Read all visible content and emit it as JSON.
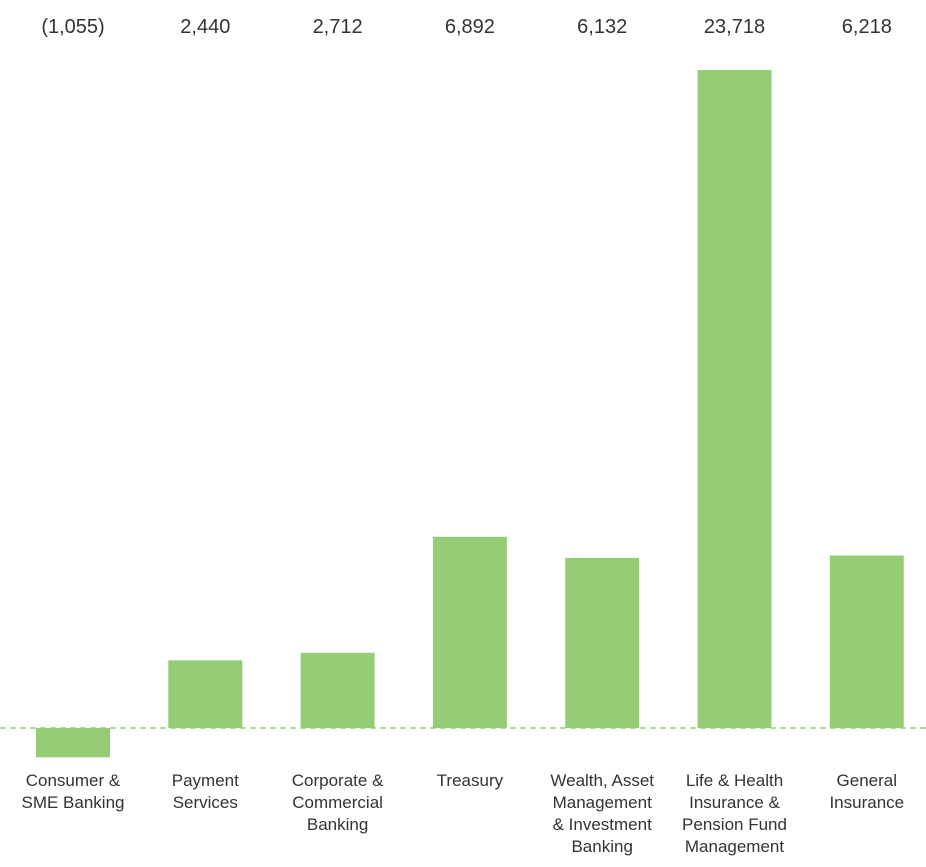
{
  "chart_data": {
    "type": "bar",
    "categories": [
      [
        "Consumer &",
        "SME Banking"
      ],
      [
        "Payment",
        "Services"
      ],
      [
        "Corporate &",
        "Commercial",
        "Banking"
      ],
      [
        "Treasury"
      ],
      [
        "Wealth, Asset",
        "Management",
        "& Investment",
        "Banking"
      ],
      [
        "Life & Health",
        "Insurance &",
        "Pension Fund",
        "Management"
      ],
      [
        "General",
        "Insurance"
      ]
    ],
    "values": [
      -1055,
      2440,
      2712,
      6892,
      6132,
      23718,
      6218
    ],
    "value_labels": [
      "(1,055)",
      "2,440",
      "2,712",
      "6,892",
      "6,132",
      "23,718",
      "6,218"
    ],
    "title": "",
    "xlabel": "",
    "ylabel": "",
    "ylim": [
      -1500,
      24000
    ],
    "grid": false,
    "legend": "none",
    "bar_color": "#95cd77",
    "baseline_color": "#95cd77",
    "baseline_style": "dashed"
  }
}
